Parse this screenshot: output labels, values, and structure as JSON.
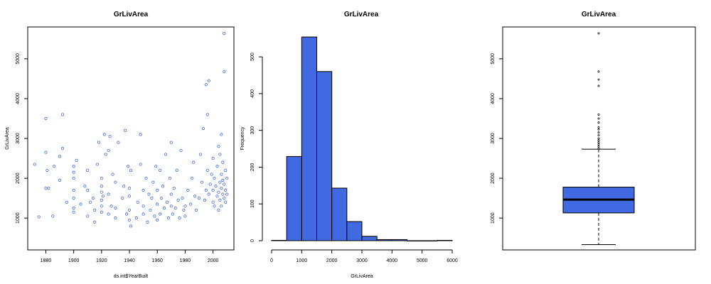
{
  "colors": {
    "accent": "#4169e1",
    "stroke": "#000000"
  },
  "chart_data": [
    {
      "type": "scatter",
      "title": "GrLivArea",
      "xlabel": "ds.int$YearBuilt",
      "ylabel": "GrLivArea",
      "xlim": [
        1867,
        2015
      ],
      "ylim": [
        200,
        5800
      ],
      "xticks": [
        "1880",
        "1900",
        "1920",
        "1940",
        "1960",
        "1980",
        "2000"
      ],
      "yticks": [
        "1000",
        "2000",
        "3000",
        "4000",
        "5000"
      ],
      "points": [
        [
          1872,
          2350
        ],
        [
          1875,
          1030
        ],
        [
          1880,
          3500
        ],
        [
          1880,
          2650
        ],
        [
          1880,
          1750
        ],
        [
          1881,
          2200
        ],
        [
          1882,
          1750
        ],
        [
          1885,
          1050
        ],
        [
          1886,
          2300
        ],
        [
          1890,
          1950
        ],
        [
          1890,
          2550
        ],
        [
          1892,
          2750
        ],
        [
          1892,
          3600
        ],
        [
          1895,
          1400
        ],
        [
          1900,
          1500
        ],
        [
          1900,
          1150
        ],
        [
          1900,
          1250
        ],
        [
          1900,
          1700
        ],
        [
          1900,
          2000
        ],
        [
          1900,
          2150
        ],
        [
          1900,
          2300
        ],
        [
          1902,
          2450
        ],
        [
          1905,
          1350
        ],
        [
          1908,
          1800
        ],
        [
          1910,
          2200
        ],
        [
          1910,
          1700
        ],
        [
          1910,
          1050
        ],
        [
          1912,
          1400
        ],
        [
          1914,
          1500
        ],
        [
          1915,
          900
        ],
        [
          1915,
          1200
        ],
        [
          1917,
          2350
        ],
        [
          1918,
          2900
        ],
        [
          1920,
          1150
        ],
        [
          1920,
          1300
        ],
        [
          1920,
          1450
        ],
        [
          1920,
          1800
        ],
        [
          1920,
          2000
        ],
        [
          1920,
          1650
        ],
        [
          1921,
          1550
        ],
        [
          1922,
          3100
        ],
        [
          1923,
          2600
        ],
        [
          1925,
          1100
        ],
        [
          1925,
          1600
        ],
        [
          1925,
          2700
        ],
        [
          1926,
          3050
        ],
        [
          1927,
          1300
        ],
        [
          1928,
          2100
        ],
        [
          1930,
          1900
        ],
        [
          1930,
          1000
        ],
        [
          1930,
          1250
        ],
        [
          1932,
          2900
        ],
        [
          1935,
          1500
        ],
        [
          1936,
          1800
        ],
        [
          1937,
          3200
        ],
        [
          1938,
          1100
        ],
        [
          1939,
          2300
        ],
        [
          1940,
          950
        ],
        [
          1940,
          1200
        ],
        [
          1940,
          1550
        ],
        [
          1940,
          1750
        ],
        [
          1941,
          2200
        ],
        [
          1941,
          800
        ],
        [
          1945,
          1000
        ],
        [
          1946,
          1400
        ],
        [
          1948,
          3100
        ],
        [
          1948,
          2350
        ],
        [
          1950,
          1300
        ],
        [
          1950,
          1100
        ],
        [
          1950,
          1700
        ],
        [
          1952,
          2000
        ],
        [
          1953,
          900
        ],
        [
          1954,
          1600
        ],
        [
          1955,
          1200
        ],
        [
          1956,
          1500
        ],
        [
          1957,
          1900
        ],
        [
          1958,
          1050
        ],
        [
          1959,
          2300
        ],
        [
          1960,
          1350
        ],
        [
          1960,
          950
        ],
        [
          1960,
          1700
        ],
        [
          1962,
          2200
        ],
        [
          1962,
          1100
        ],
        [
          1963,
          1500
        ],
        [
          1964,
          1800
        ],
        [
          1965,
          1250
        ],
        [
          1966,
          2600
        ],
        [
          1967,
          1400
        ],
        [
          1968,
          1000
        ],
        [
          1969,
          2000
        ],
        [
          1970,
          1300
        ],
        [
          1970,
          1600
        ],
        [
          1970,
          2900
        ],
        [
          1971,
          1100
        ],
        [
          1972,
          1750
        ],
        [
          1973,
          1250
        ],
        [
          1974,
          2200
        ],
        [
          1975,
          1450
        ],
        [
          1976,
          1000
        ],
        [
          1977,
          2700
        ],
        [
          1978,
          1500
        ],
        [
          1979,
          1200
        ],
        [
          1980,
          1300
        ],
        [
          1980,
          1050
        ],
        [
          1982,
          1700
        ],
        [
          1984,
          1350
        ],
        [
          1985,
          2000
        ],
        [
          1986,
          2400
        ],
        [
          1987,
          1550
        ],
        [
          1988,
          1200
        ],
        [
          1990,
          1500
        ],
        [
          1991,
          2600
        ],
        [
          1992,
          1900
        ],
        [
          1993,
          3250
        ],
        [
          1994,
          1450
        ],
        [
          1995,
          4350
        ],
        [
          1995,
          1700
        ],
        [
          1996,
          2200
        ],
        [
          1996,
          3600
        ],
        [
          1997,
          1600
        ],
        [
          1997,
          4450
        ],
        [
          1998,
          1850
        ],
        [
          1999,
          2100
        ],
        [
          2000,
          1400
        ],
        [
          2000,
          1700
        ],
        [
          2000,
          2500
        ],
        [
          2001,
          1300
        ],
        [
          2001,
          2000
        ],
        [
          2002,
          1800
        ],
        [
          2003,
          1550
        ],
        [
          2003,
          2300
        ],
        [
          2004,
          1650
        ],
        [
          2004,
          2800
        ],
        [
          2004,
          1200
        ],
        [
          2005,
          1900
        ],
        [
          2005,
          2600
        ],
        [
          2005,
          1450
        ],
        [
          2006,
          1750
        ],
        [
          2006,
          2100
        ],
        [
          2006,
          3100
        ],
        [
          2006,
          1300
        ],
        [
          2007,
          1600
        ],
        [
          2007,
          2400
        ],
        [
          2007,
          1950
        ],
        [
          2008,
          1500
        ],
        [
          2008,
          4680
        ],
        [
          2008,
          5640
        ],
        [
          2008,
          1850
        ],
        [
          2009,
          1700
        ],
        [
          2009,
          2200
        ],
        [
          2009,
          1400
        ],
        [
          2010,
          1600
        ],
        [
          2010,
          2000
        ]
      ]
    },
    {
      "type": "bar",
      "title": "GrLivArea",
      "xlabel": "GrLivArea",
      "ylabel": "Frequency",
      "categories": [
        "0-500",
        "500-1000",
        "1000-1500",
        "1500-2000",
        "2000-2500",
        "2500-3000",
        "3000-3500",
        "3500-4000",
        "4000-4500",
        "4500-5000",
        "5000-5500",
        "5500-6000"
      ],
      "bins": [
        0,
        500,
        1000,
        1500,
        2000,
        2500,
        3000,
        3500,
        4000,
        4500,
        5000,
        5500,
        6000
      ],
      "values": [
        1,
        229,
        554,
        460,
        143,
        52,
        12,
        3,
        3,
        0,
        0,
        1
      ],
      "xlim": [
        0,
        6000
      ],
      "ylim": [
        0,
        560
      ],
      "xticks": [
        "0",
        "1000",
        "2000",
        "3000",
        "4000",
        "5000",
        "6000"
      ],
      "yticks": [
        "0",
        "100",
        "200",
        "300",
        "400",
        "500"
      ]
    },
    {
      "type": "box",
      "title": "GrLivArea",
      "ylim": [
        200,
        5800
      ],
      "yticks": [
        "1000",
        "2000",
        "3000",
        "4000",
        "5000"
      ],
      "whisker_low": 334,
      "q1": 1130,
      "median": 1464,
      "q3": 1777,
      "whisker_high": 2730,
      "outliers": [
        2750,
        2800,
        2850,
        2900,
        2950,
        3000,
        3080,
        3150,
        3230,
        3280,
        3400,
        3500,
        3600,
        4320,
        4480,
        4680,
        5640
      ]
    }
  ]
}
